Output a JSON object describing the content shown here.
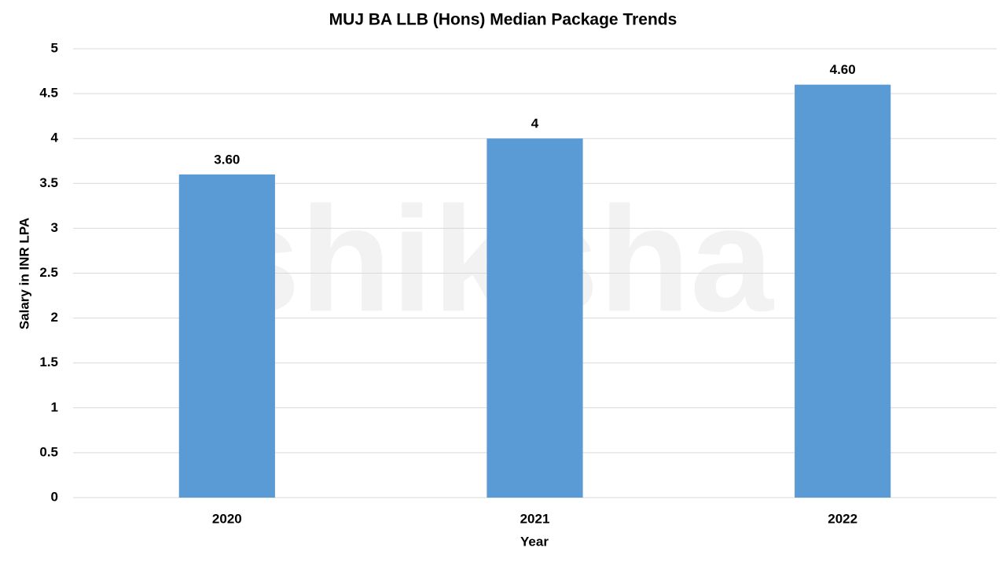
{
  "chart_data": {
    "type": "bar",
    "title": "MUJ BA LLB (Hons) Median Package Trends",
    "x_label": "Year",
    "y_label": "Salary in INR LPA",
    "watermark": "shiksha",
    "categories": [
      "2020",
      "2021",
      "2022"
    ],
    "values": [
      3.6,
      4,
      4.6
    ],
    "value_labels": [
      "3.60",
      "4",
      "4.60"
    ],
    "color": "#5b9bd5",
    "ylim": [
      0,
      5
    ],
    "yticks": [
      0,
      0.5,
      1,
      1.5,
      2,
      2.5,
      3,
      3.5,
      4,
      4.5,
      5
    ],
    "grid": true
  }
}
